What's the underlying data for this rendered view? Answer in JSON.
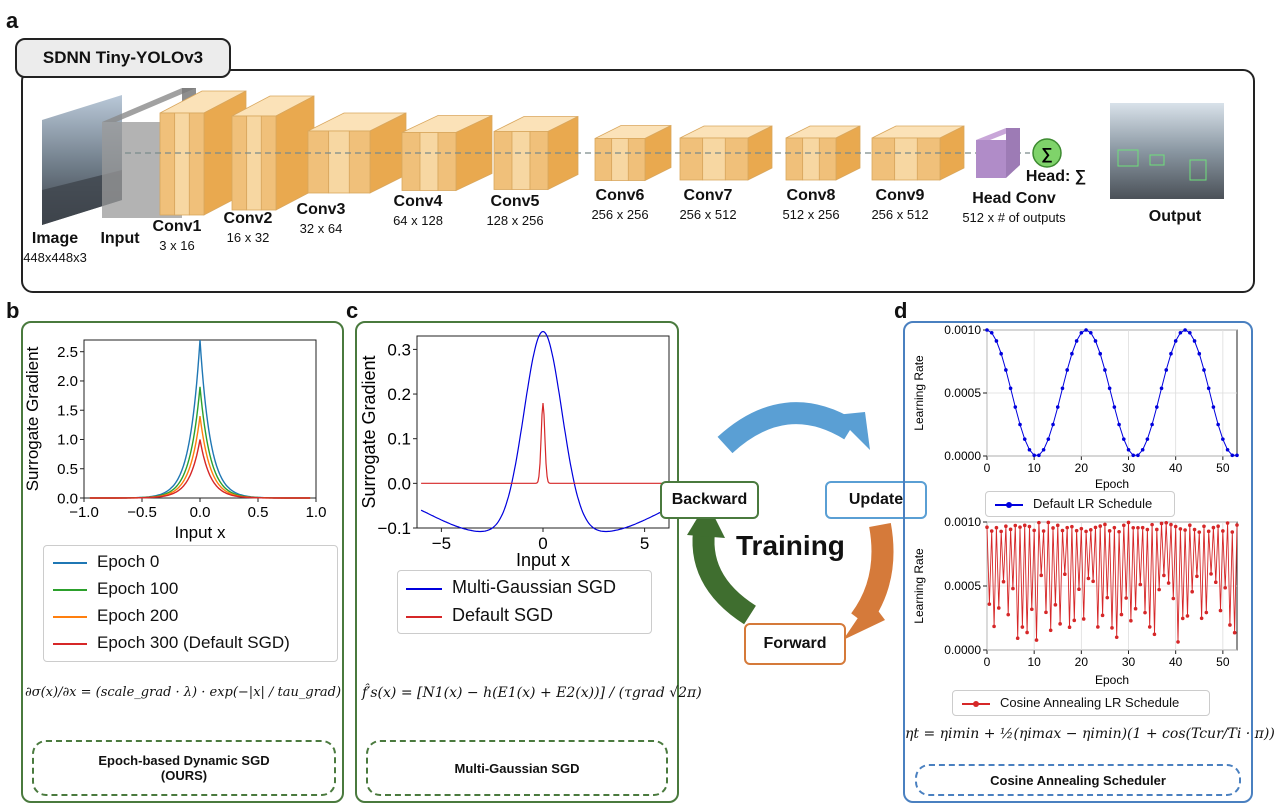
{
  "panels": {
    "a": "a",
    "b": "b",
    "c": "c",
    "d": "d"
  },
  "network": {
    "title": "SDNN Tiny-YOLOv3",
    "layers": [
      {
        "name": "Image",
        "size": "448x448x3"
      },
      {
        "name": "Input",
        "size": ""
      },
      {
        "name": "Conv1",
        "size": "3 x 16"
      },
      {
        "name": "Conv2",
        "size": "16 x 32"
      },
      {
        "name": "Conv3",
        "size": "32 x 64"
      },
      {
        "name": "Conv4",
        "size": "64 x 128"
      },
      {
        "name": "Conv5",
        "size": "128 x 256"
      },
      {
        "name": "Conv6",
        "size": "256 x 256"
      },
      {
        "name": "Conv7",
        "size": "256 x 512"
      },
      {
        "name": "Conv8",
        "size": "512 x 256"
      },
      {
        "name": "Conv9",
        "size": "256 x 512"
      },
      {
        "name": "Head Conv",
        "size": "512 x # of outputs"
      }
    ],
    "head_label": "Head: ∑",
    "sum_symbol": "∑",
    "output_label": "Output"
  },
  "panel_b": {
    "footer_line1": "Epoch-based Dynamic SGD",
    "footer_line2": "(OURS)",
    "formula": "∂σ(x)/∂x = (scale_grad · λ) · exp(−|x| / tau_grad)"
  },
  "panel_c": {
    "footer": "Multi-Gaussian SGD",
    "formula": "f̂′s(x) = [N1(x) − h(E1(x) + E2(x))] / (τgrad √2π)"
  },
  "training": {
    "title": "Training",
    "backward": "Backward",
    "update": "Update",
    "forward": "Forward"
  },
  "panel_d": {
    "footer": "Cosine Annealing Scheduler",
    "formula": "ηt = ηimin + ½(ηimax − ηimin)(1 + cos(Tcur/Ti · π))"
  },
  "chart_data": [
    {
      "type": "line",
      "xlabel": "Input x",
      "ylabel": "Surrogate Gradient",
      "xlim": [
        -1.0,
        1.0
      ],
      "ylim": [
        0.0,
        2.7
      ],
      "xticks": [
        "−1.0",
        "−0.5",
        "0.0",
        "0.5",
        "1.0"
      ],
      "yticks": [
        "0.0",
        "0.5",
        "1.0",
        "1.5",
        "2.0",
        "2.5"
      ],
      "series": [
        {
          "name": "Epoch 0",
          "color": "#1f77b4",
          "peak": 2.7,
          "decay": 0.09
        },
        {
          "name": "Epoch 100",
          "color": "#2ca02c",
          "peak": 1.9,
          "decay": 0.09
        },
        {
          "name": "Epoch 200",
          "color": "#ff7f0e",
          "peak": 1.4,
          "decay": 0.09
        },
        {
          "name": "Epoch 300 (Default SGD)",
          "color": "#d62728",
          "peak": 1.0,
          "decay": 0.09
        }
      ]
    },
    {
      "type": "line",
      "xlabel": "Input x",
      "ylabel": "Surrogate Gradient",
      "xlim": [
        -6.2,
        6.2
      ],
      "ylim": [
        -0.1,
        0.33
      ],
      "xticks": [
        "−5",
        "0",
        "5"
      ],
      "yticks": [
        "−0.1",
        "0.0",
        "0.1",
        "0.2",
        "0.3"
      ],
      "series": [
        {
          "name": "Multi-Gaussian SGD",
          "color": "#0000dd",
          "peak": 0.34,
          "sigma": 0.9,
          "neg": 0.1,
          "neg_sigma": 3.0
        },
        {
          "name": "Default SGD",
          "color": "#d62728",
          "peak": 0.18,
          "sigma": 0.09
        }
      ]
    },
    {
      "type": "line",
      "xlabel": "Epoch",
      "ylabel": "Learning Rate",
      "xlim": [
        0,
        53
      ],
      "ylim": [
        0.0,
        0.001
      ],
      "xticks": [
        "0",
        "10",
        "20",
        "30",
        "40",
        "50"
      ],
      "yticks": [
        "0.0000",
        "0.0005",
        "0.0010"
      ],
      "series": [
        {
          "name": "Default LR Schedule",
          "color": "#0000dd",
          "period": 21,
          "max": 0.001,
          "min": 0.0
        }
      ]
    },
    {
      "type": "line",
      "xlabel": "Epoch",
      "ylabel": "Learning Rate",
      "xlim": [
        0,
        53
      ],
      "ylim": [
        0.0,
        0.001
      ],
      "xticks": [
        "0",
        "10",
        "20",
        "30",
        "40",
        "50"
      ],
      "yticks": [
        "0.0000",
        "0.0005",
        "0.0010"
      ],
      "series": [
        {
          "name": "Cosine Annealing LR Schedule",
          "color": "#d62728",
          "max": 0.001,
          "min": 0.0
        }
      ]
    }
  ]
}
